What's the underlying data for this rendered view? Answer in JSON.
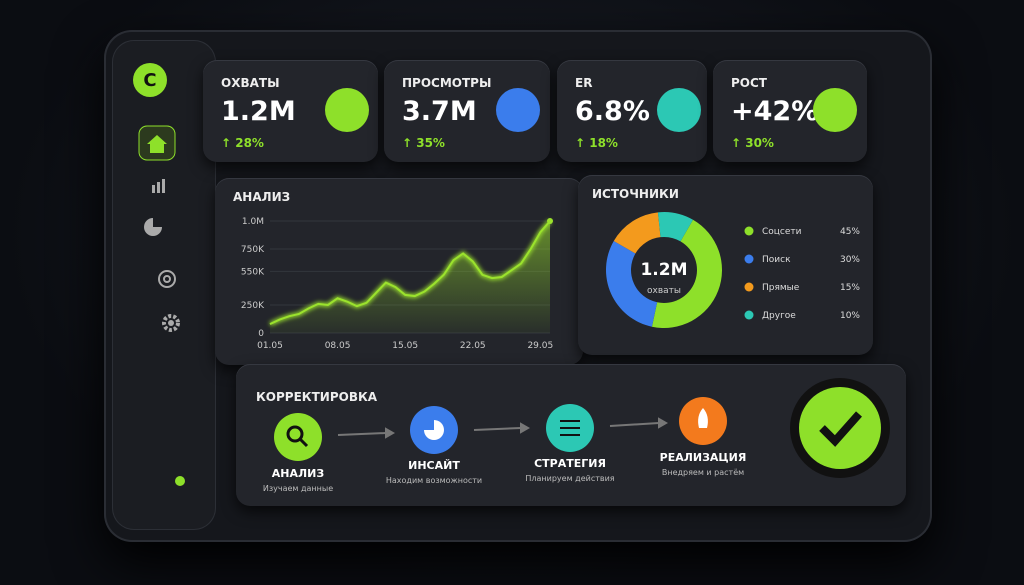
{
  "sidebar": {
    "logo": "C"
  },
  "kpis": [
    {
      "title": "ОХВАТЫ",
      "value": "1.2M",
      "change": "↑ 28%"
    },
    {
      "title": "ПРОСМОТРЫ",
      "value": "3.7M",
      "change": "↑ 35%"
    },
    {
      "title": "ER",
      "value": "6.8%",
      "change": "↑ 18%"
    },
    {
      "title": "РОСТ",
      "value": "+42%",
      "change": "↑ 30%"
    }
  ],
  "analysis": {
    "type": "line",
    "title": "АНАЛИЗ",
    "color": "#9be22d",
    "categories": [
      "01.05",
      null,
      null,
      null,
      null,
      null,
      null,
      "08.05",
      null,
      null,
      null,
      null,
      null,
      null,
      "15.05",
      null,
      null,
      null,
      null,
      null,
      null,
      "22.05",
      null,
      null,
      null,
      null,
      null,
      null,
      "29.05",
      null
    ],
    "values": [
      80000,
      120000,
      150000,
      170000,
      220000,
      260000,
      250000,
      310000,
      280000,
      240000,
      270000,
      360000,
      450000,
      410000,
      340000,
      330000,
      370000,
      440000,
      520000,
      650000,
      710000,
      640000,
      520000,
      490000,
      500000,
      560000,
      620000,
      750000,
      900000,
      1000000
    ],
    "ylim": [
      0,
      1000000
    ],
    "yticks": [
      {
        "value": 0,
        "label": "0"
      },
      {
        "value": 250000,
        "label": "250K"
      },
      {
        "value": 550000,
        "label": "550K"
      },
      {
        "value": 750000,
        "label": "750K"
      },
      {
        "value": 1000000,
        "label": "1.0M"
      }
    ],
    "grid": true
  },
  "sources": {
    "type": "pie",
    "title": "ИСТОЧНИКИ",
    "center_value": "1.2M",
    "center_label": "охваты",
    "categories": [
      "Соцсети",
      "Поиск",
      "Прямые",
      "Другое"
    ],
    "values": [
      45,
      30,
      15,
      10
    ],
    "value_labels": [
      "45%",
      "30%",
      "15%",
      "10%"
    ],
    "colors": [
      "#8ee02a",
      "#3b7dec",
      "#f39a1d",
      "#2cc8b4"
    ]
  },
  "correction": {
    "title": "КОРРЕКТИРОВКА",
    "steps": [
      {
        "title": "АНАЛИЗ",
        "subtitle": "Изучаем данные"
      },
      {
        "title": "ИНСАЙТ",
        "subtitle": "Находим возможности"
      },
      {
        "title": "СТРАТЕГИЯ",
        "subtitle": "Планируем действия"
      },
      {
        "title": "РЕАЛИЗАЦИЯ",
        "subtitle": "Внедряем и растём"
      }
    ]
  }
}
